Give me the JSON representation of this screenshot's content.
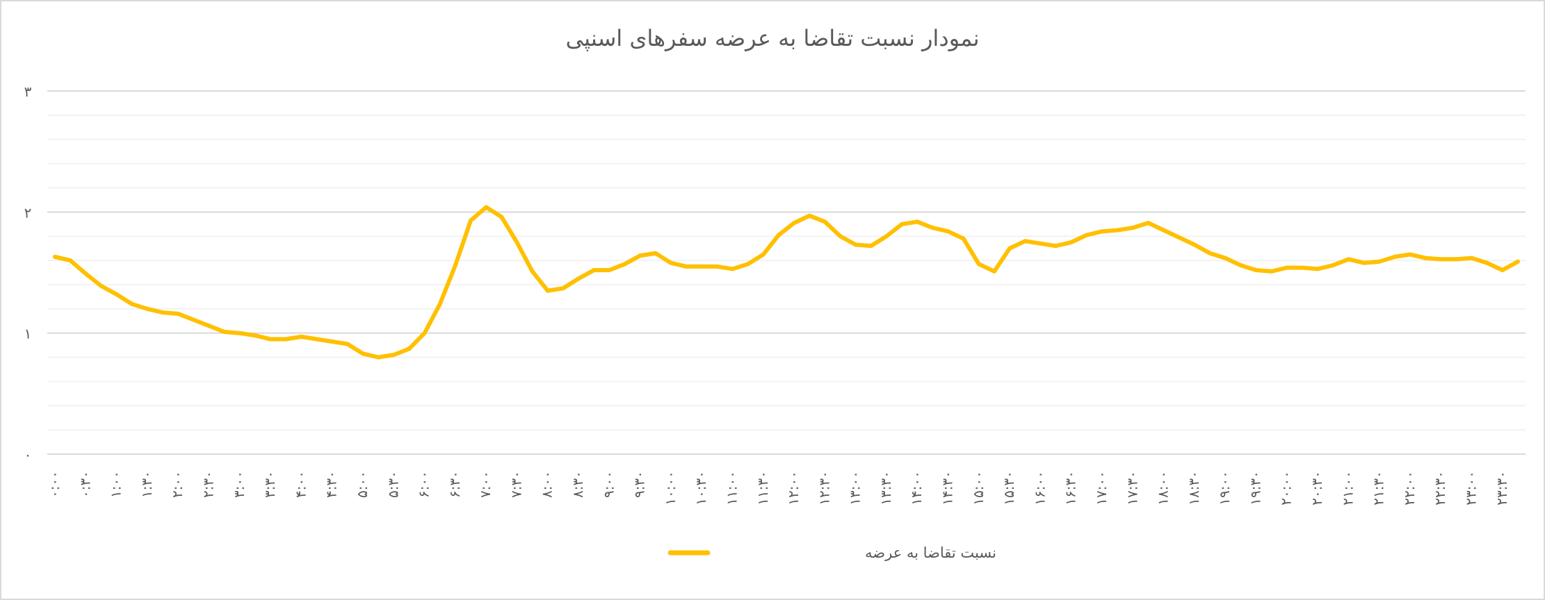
{
  "chart_data": {
    "type": "line",
    "title": "نمودار نسبت تقاضا به عرضه سفرهای اسنپی",
    "xlabel": "",
    "ylabel": "",
    "ylim": [
      0,
      3
    ],
    "y_ticks": [
      0,
      1,
      2,
      3
    ],
    "y_tick_labels": [
      "۰",
      "۱",
      "۲",
      "۳"
    ],
    "grid": true,
    "minor_grid_step": 0.2,
    "legend_position": "bottom",
    "x_tick_labels": [
      "۰:۰۰",
      "۰:۳۰",
      "۱:۰۰",
      "۱:۳۰",
      "۲:۰۰",
      "۲:۳۰",
      "۳:۰۰",
      "۳:۳۰",
      "۴:۰۰",
      "۴:۳۰",
      "۵:۰۰",
      "۵:۳۰",
      "۶:۰۰",
      "۶:۳۰",
      "۷:۰۰",
      "۷:۳۰",
      "۸:۰۰",
      "۸:۳۰",
      "۹:۰۰",
      "۹:۳۰",
      "۱۰:۰۰",
      "۱۰:۳۰",
      "۱۱:۰۰",
      "۱۱:۳۰",
      "۱۲:۰۰",
      "۱۲:۳۰",
      "۱۳:۰۰",
      "۱۳:۳۰",
      "۱۴:۰۰",
      "۱۴:۳۰",
      "۱۵:۰۰",
      "۱۵:۳۰",
      "۱۶:۰۰",
      "۱۶:۳۰",
      "۱۷:۰۰",
      "۱۷:۳۰",
      "۱۸:۰۰",
      "۱۸:۳۰",
      "۱۹:۰۰",
      "۱۹:۳۰",
      "۲۰:۰۰",
      "۲۰:۳۰",
      "۲۱:۰۰",
      "۲۱:۳۰",
      "۲۲:۰۰",
      "۲۲:۳۰",
      "۲۳:۰۰",
      "۲۳:۳۰"
    ],
    "series": [
      {
        "name": "نسبت تقاضا به عرضه",
        "color": "#FFC000",
        "values": [
          1.63,
          1.6,
          1.49,
          1.39,
          1.32,
          1.24,
          1.2,
          1.17,
          1.16,
          1.11,
          1.06,
          1.01,
          1.0,
          0.98,
          0.95,
          0.95,
          0.97,
          0.95,
          0.93,
          0.91,
          0.83,
          0.8,
          0.82,
          0.87,
          1.0,
          1.24,
          1.56,
          1.93,
          2.04,
          1.96,
          1.75,
          1.51,
          1.35,
          1.37,
          1.45,
          1.52,
          1.52,
          1.57,
          1.64,
          1.66,
          1.58,
          1.55,
          1.55,
          1.55,
          1.53,
          1.57,
          1.65,
          1.81,
          1.91,
          1.97,
          1.92,
          1.8,
          1.73,
          1.72,
          1.8,
          1.9,
          1.92,
          1.87,
          1.84,
          1.78,
          1.57,
          1.51,
          1.7,
          1.76,
          1.74,
          1.72,
          1.75,
          1.81,
          1.84,
          1.85,
          1.87,
          1.91,
          1.85,
          1.79,
          1.73,
          1.66,
          1.62,
          1.56,
          1.52,
          1.51,
          1.54,
          1.54,
          1.53,
          1.56,
          1.61,
          1.58,
          1.59,
          1.63,
          1.65,
          1.62,
          1.61,
          1.61,
          1.62,
          1.58,
          1.52,
          1.59
        ]
      }
    ]
  },
  "colors": {
    "gridline_major": "#d9d9d9",
    "gridline_minor": "#f2f2f2",
    "text": "#595959"
  }
}
